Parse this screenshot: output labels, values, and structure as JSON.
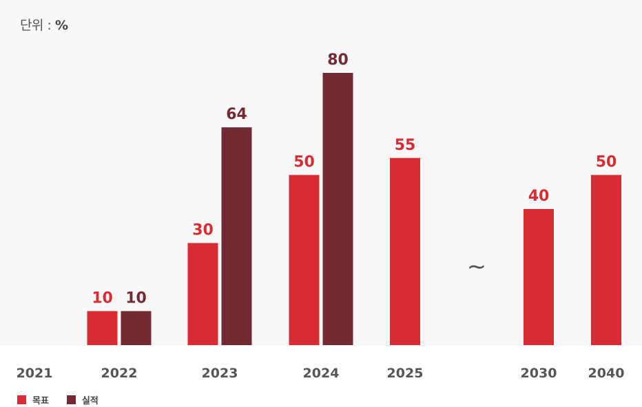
{
  "unit": {
    "prefix": "단위 : ",
    "symbol": "%"
  },
  "colors": {
    "target": "#d82c34",
    "actual": "#722a33",
    "background": "#f8f8f8"
  },
  "axis_break_symbol": "∼",
  "legend": [
    {
      "label": "목표",
      "series": "target"
    },
    {
      "label": "실적",
      "series": "actual"
    }
  ],
  "chart_data": {
    "type": "bar",
    "categories": [
      "2021",
      "2022",
      "2023",
      "2024",
      "2025",
      "2030",
      "2040"
    ],
    "series": [
      {
        "name": "목표",
        "key": "target",
        "values": [
          null,
          10,
          30,
          50,
          55,
          40,
          50
        ]
      },
      {
        "name": "실적",
        "key": "actual",
        "values": [
          null,
          10,
          64,
          80,
          null,
          null,
          null
        ]
      }
    ],
    "ylim": [
      0,
      100
    ],
    "grid": false,
    "legend_position": "bottom-left",
    "axis_break_between": [
      "2025",
      "2030"
    ]
  }
}
